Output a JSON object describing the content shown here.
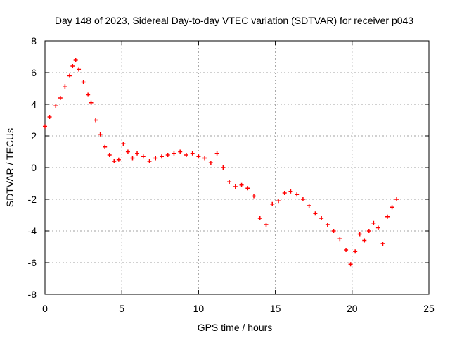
{
  "chart_data": {
    "type": "scatter",
    "title": "Day 148 of 2023, Sidereal Day-to-day VTEC variation (SDTVAR) for receiver p043",
    "xlabel": "GPS time / hours",
    "ylabel": "SDTVAR / TECUs",
    "xlim": [
      0,
      25
    ],
    "ylim": [
      -8,
      8
    ],
    "xticks": [
      0,
      5,
      10,
      15,
      20,
      25
    ],
    "yticks": [
      -8,
      -6,
      -4,
      -2,
      0,
      2,
      4,
      6,
      8
    ],
    "xtick_labels": [
      "0",
      "5",
      "10",
      "15",
      "20",
      "25"
    ],
    "ytick_labels": [
      "-8",
      "-6",
      "-4",
      "-2",
      "0",
      "2",
      "4",
      "6",
      "8"
    ],
    "grid": true,
    "marker": "+",
    "color": "#ff0000",
    "series": [
      {
        "name": "p043",
        "x": [
          0.0,
          0.3,
          0.7,
          1.0,
          1.3,
          1.6,
          1.8,
          2.0,
          2.2,
          2.5,
          2.8,
          3.0,
          3.3,
          3.6,
          3.9,
          4.2,
          4.5,
          4.8,
          5.1,
          5.4,
          5.7,
          6.0,
          6.4,
          6.8,
          7.2,
          7.6,
          8.0,
          8.4,
          8.8,
          9.2,
          9.6,
          10.0,
          10.4,
          10.8,
          11.2,
          11.6,
          12.0,
          12.4,
          12.8,
          13.2,
          13.6,
          14.0,
          14.4,
          14.8,
          15.2,
          15.6,
          16.0,
          16.4,
          16.8,
          17.2,
          17.6,
          18.0,
          18.4,
          18.8,
          19.2,
          19.6,
          19.9,
          20.2,
          20.5,
          20.8,
          21.1,
          21.4,
          21.7,
          22.0,
          22.3,
          22.6,
          22.9
        ],
        "y": [
          2.6,
          3.2,
          3.9,
          4.4,
          5.1,
          5.8,
          6.4,
          6.8,
          6.2,
          5.4,
          4.6,
          4.1,
          3.0,
          2.1,
          1.3,
          0.8,
          0.4,
          0.5,
          1.5,
          1.0,
          0.6,
          0.9,
          0.7,
          0.4,
          0.6,
          0.7,
          0.8,
          0.9,
          1.0,
          0.8,
          0.9,
          0.7,
          0.6,
          0.3,
          0.9,
          0.0,
          -0.9,
          -1.2,
          -1.1,
          -1.3,
          -1.8,
          -3.2,
          -3.6,
          -2.3,
          -2.1,
          -1.6,
          -1.5,
          -1.7,
          -2.0,
          -2.4,
          -2.9,
          -3.2,
          -3.6,
          -4.0,
          -4.5,
          -5.2,
          -6.1,
          -5.3,
          -4.2,
          -4.6,
          -4.0,
          -3.5,
          -3.8,
          -4.8,
          -3.1,
          -2.5,
          -2.0
        ]
      }
    ]
  }
}
